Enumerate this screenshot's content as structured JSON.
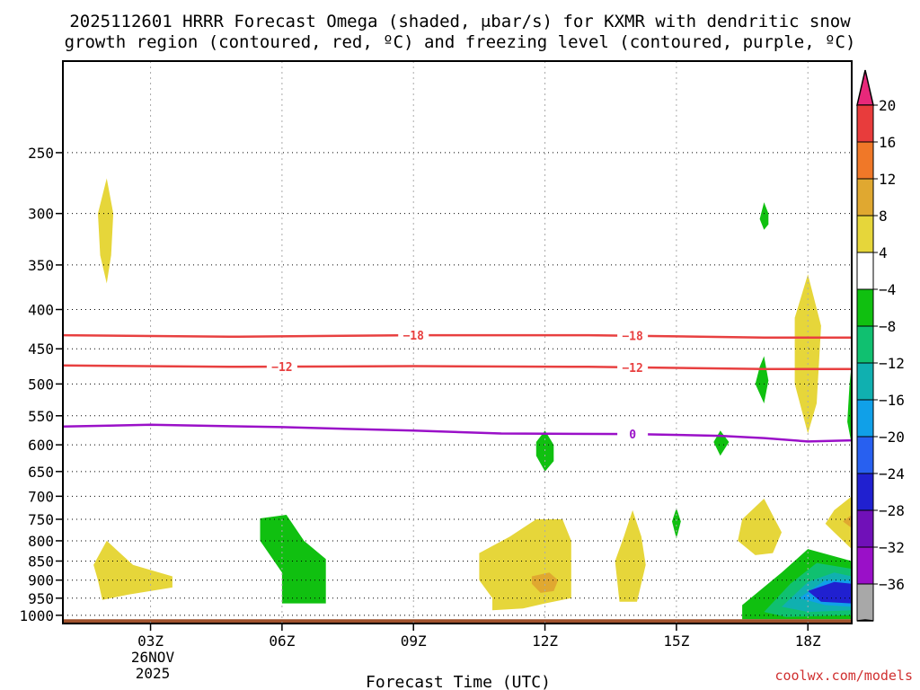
{
  "chart_data": {
    "type": "time-height cross section (filled contour + contour lines)",
    "title_line1": "2025112601 HRRR Forecast Omega (shaded, μbar/s) for KXMR with dendritic snow",
    "title_line2": "growth region (contoured, red, ºC) and freezing level (contoured, purple, ºC)",
    "xlabel": "Forecast Time (UTC)",
    "x_domain_hours": [
      1,
      19
    ],
    "x_ticks": [
      {
        "hour": 3,
        "label": "03Z"
      },
      {
        "hour": 6,
        "label": "06Z"
      },
      {
        "hour": 9,
        "label": "09Z"
      },
      {
        "hour": 12,
        "label": "12Z"
      },
      {
        "hour": 15,
        "label": "15Z"
      },
      {
        "hour": 18,
        "label": "18Z"
      }
    ],
    "date_label": [
      "26NOV",
      "2025"
    ],
    "y_ticks": [
      250,
      300,
      350,
      400,
      450,
      500,
      550,
      600,
      650,
      700,
      750,
      800,
      850,
      900,
      950,
      1000
    ],
    "y_range_hPa": [
      1025,
      190
    ],
    "y_scale": "log-pressure",
    "grid": true,
    "credit": "coolwx.com/models",
    "ground": {
      "color": "#a0522d",
      "pressure_from": 1012
    },
    "colorbar": {
      "labels": [
        "20",
        "16",
        "12",
        "8",
        "4",
        "-4",
        "-8",
        "-12",
        "-16",
        "-20",
        "-24",
        "-28",
        "-32",
        "-36"
      ],
      "colors": [
        "#e8287a",
        "#e83c3c",
        "#f07828",
        "#e0a830",
        "#e6d63a",
        "#ffffff",
        "#10c010",
        "#10c070",
        "#10b0b0",
        "#10a0e8",
        "#2860f0",
        "#2020d0",
        "#7010b8",
        "#9a10c8",
        "#a8a8a8",
        "#000000"
      ]
    },
    "series": [
      {
        "name": "-18",
        "color": "#e84040",
        "points": [
          [
            1,
            432
          ],
          [
            5,
            434
          ],
          [
            9,
            432
          ],
          [
            13,
            432
          ],
          [
            17,
            435
          ],
          [
            19,
            435
          ]
        ],
        "label_hours": [
          9,
          14
        ]
      },
      {
        "name": "-12",
        "color": "#e84040",
        "points": [
          [
            1,
            473
          ],
          [
            5,
            475
          ],
          [
            9,
            474
          ],
          [
            13,
            475
          ],
          [
            17,
            478
          ],
          [
            19,
            478
          ]
        ],
        "label_hours": [
          6,
          14
        ]
      },
      {
        "name": "0",
        "color": "#9a10c8",
        "points": [
          [
            1,
            568
          ],
          [
            3,
            565
          ],
          [
            6,
            569
          ],
          [
            9,
            575
          ],
          [
            11,
            580
          ],
          [
            14,
            581
          ],
          [
            16,
            584
          ],
          [
            17,
            588
          ],
          [
            18,
            594
          ],
          [
            19,
            592
          ]
        ],
        "label_hours": [
          14
        ]
      }
    ],
    "shaded_regions": [
      {
        "level": 4,
        "color": "#e6d63a",
        "points": [
          [
            2,
            270
          ],
          [
            2.15,
            300
          ],
          [
            2.1,
            340
          ],
          [
            2,
            370
          ],
          [
            1.85,
            340
          ],
          [
            1.8,
            300
          ]
        ]
      },
      {
        "level": 4,
        "color": "#e6d63a",
        "points": [
          [
            2,
            800
          ],
          [
            2.6,
            860
          ],
          [
            3.5,
            890
          ],
          [
            3.5,
            920
          ],
          [
            2.5,
            940
          ],
          [
            1.9,
            955
          ],
          [
            1.8,
            900
          ],
          [
            1.7,
            860
          ]
        ]
      },
      {
        "level": -4,
        "color": "#10c010",
        "points": [
          [
            5.5,
            748
          ],
          [
            6.1,
            740
          ],
          [
            6.5,
            800
          ],
          [
            7,
            845
          ],
          [
            7,
            965
          ],
          [
            6,
            965
          ],
          [
            6,
            880
          ],
          [
            5.5,
            800
          ]
        ]
      },
      {
        "level": 4,
        "color": "#e6d63a",
        "points": [
          [
            10.5,
            830
          ],
          [
            11.2,
            790
          ],
          [
            11.8,
            750
          ],
          [
            12.4,
            750
          ],
          [
            12.6,
            800
          ],
          [
            12.6,
            950
          ],
          [
            12,
            965
          ],
          [
            11.5,
            980
          ],
          [
            10.8,
            985
          ],
          [
            10.8,
            950
          ],
          [
            10.5,
            900
          ]
        ]
      },
      {
        "level": 8,
        "color": "#e0a830",
        "points": [
          [
            11.7,
            890
          ],
          [
            12.1,
            880
          ],
          [
            12.3,
            900
          ],
          [
            12.2,
            930
          ],
          [
            11.9,
            935
          ],
          [
            11.7,
            910
          ]
        ]
      },
      {
        "level": 4,
        "color": "#e6d63a",
        "points": [
          [
            14,
            730
          ],
          [
            14.2,
            790
          ],
          [
            14.3,
            860
          ],
          [
            14.1,
            960
          ],
          [
            13.7,
            960
          ],
          [
            13.6,
            850
          ],
          [
            13.8,
            790
          ]
        ]
      },
      {
        "level": -4,
        "color": "#10c010",
        "points": [
          [
            15,
            725
          ],
          [
            15.1,
            755
          ],
          [
            15,
            795
          ],
          [
            14.9,
            755
          ]
        ]
      },
      {
        "level": -4,
        "color": "#10c010",
        "points": [
          [
            12,
            575
          ],
          [
            12.2,
            600
          ],
          [
            12.2,
            630
          ],
          [
            12,
            650
          ],
          [
            11.8,
            620
          ],
          [
            11.8,
            595
          ]
        ]
      },
      {
        "level": -4,
        "color": "#10c010",
        "points": [
          [
            16,
            575
          ],
          [
            16.2,
            595
          ],
          [
            16,
            620
          ],
          [
            15.85,
            595
          ]
        ]
      },
      {
        "level": -4,
        "color": "#10c010",
        "points": [
          [
            17,
            290
          ],
          [
            17.1,
            300
          ],
          [
            17.1,
            310
          ],
          [
            17,
            315
          ],
          [
            16.9,
            305
          ]
        ]
      },
      {
        "level": -4,
        "color": "#10c010",
        "points": [
          [
            17,
            460
          ],
          [
            17.1,
            495
          ],
          [
            17,
            530
          ],
          [
            16.8,
            500
          ],
          [
            16.9,
            475
          ]
        ]
      },
      {
        "level": 4,
        "color": "#e6d63a",
        "points": [
          [
            18,
            360
          ],
          [
            18.3,
            420
          ],
          [
            18.2,
            530
          ],
          [
            18,
            580
          ],
          [
            17.7,
            500
          ],
          [
            17.7,
            410
          ]
        ]
      },
      {
        "level": -4,
        "color": "#10c010",
        "points": [
          [
            19,
            470
          ],
          [
            18.95,
            500
          ],
          [
            18.9,
            560
          ],
          [
            19,
            600
          ]
        ]
      },
      {
        "level": 4,
        "color": "#e6d63a",
        "points": [
          [
            17,
            705
          ],
          [
            17.4,
            780
          ],
          [
            17.2,
            830
          ],
          [
            16.8,
            835
          ],
          [
            16.4,
            800
          ],
          [
            16.5,
            750
          ]
        ]
      },
      {
        "level": 4,
        "color": "#e6d63a",
        "points": [
          [
            19,
            700
          ],
          [
            19,
            820
          ],
          [
            18.6,
            780
          ],
          [
            18.4,
            760
          ],
          [
            18.6,
            730
          ]
        ]
      },
      {
        "level": 8,
        "color": "#e0a830",
        "points": [
          [
            19,
            740
          ],
          [
            19,
            770
          ],
          [
            18.8,
            755
          ]
        ]
      },
      {
        "level": -4,
        "color": "#10c010",
        "points": [
          [
            16.5,
            970
          ],
          [
            17.4,
            880
          ],
          [
            18,
            820
          ],
          [
            19,
            850
          ],
          [
            19,
            1012
          ],
          [
            16.5,
            1012
          ]
        ]
      },
      {
        "level": -8,
        "color": "#10c070",
        "points": [
          [
            17,
            990
          ],
          [
            17.6,
            910
          ],
          [
            18.2,
            855
          ],
          [
            19,
            870
          ],
          [
            19,
            1000
          ],
          [
            17.5,
            1005
          ]
        ]
      },
      {
        "level": -12,
        "color": "#10b0b0",
        "points": [
          [
            17.4,
            975
          ],
          [
            18,
            905
          ],
          [
            18.6,
            880
          ],
          [
            19,
            890
          ],
          [
            19,
            985
          ],
          [
            18,
            990
          ]
        ]
      },
      {
        "level": -16,
        "color": "#10a0e8",
        "points": [
          [
            17.8,
            950
          ],
          [
            18.4,
            900
          ],
          [
            19,
            900
          ],
          [
            19,
            975
          ],
          [
            18.4,
            970
          ]
        ]
      },
      {
        "level": -24,
        "color": "#2020d0",
        "points": [
          [
            18,
            930
          ],
          [
            18.6,
            905
          ],
          [
            19,
            910
          ],
          [
            19,
            965
          ],
          [
            18.3,
            960
          ]
        ]
      }
    ]
  }
}
